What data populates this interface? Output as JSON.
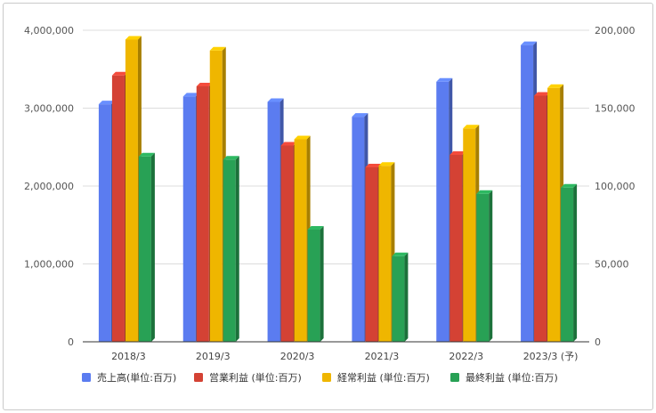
{
  "chart_data": {
    "type": "bar",
    "categories": [
      "2018/3",
      "2019/3",
      "2020/3",
      "2021/3",
      "2022/3",
      "2023/3 (予)"
    ],
    "series": [
      {
        "name": "売上高(単位:百万)",
        "axis": "left",
        "color": "#5b7cf0",
        "values": [
          3050000,
          3150000,
          3080000,
          2890000,
          3340000,
          3810000
        ]
      },
      {
        "name": "営業利益 (単位:百万)",
        "axis": "right",
        "color": "#d44234",
        "values": [
          171000,
          164000,
          126000,
          112000,
          120000,
          158000
        ]
      },
      {
        "name": "経常利益 (単位:百万)",
        "axis": "right",
        "color": "#efb600",
        "values": [
          194000,
          187000,
          130000,
          113000,
          137000,
          163000
        ]
      },
      {
        "name": "最終利益 (単位:百万)",
        "axis": "right",
        "color": "#28a155",
        "values": [
          119000,
          117000,
          72000,
          55000,
          95000,
          99000
        ]
      }
    ],
    "y_left": {
      "min": 0,
      "max": 4000000,
      "ticks": [
        0,
        1000000,
        2000000,
        3000000,
        4000000
      ],
      "tick_labels": [
        "0",
        "1,000,000",
        "2,000,000",
        "3,000,000",
        "4,000,000"
      ]
    },
    "y_right": {
      "min": 0,
      "max": 200000,
      "ticks": [
        0,
        50000,
        100000,
        150000,
        200000
      ],
      "tick_labels": [
        "0",
        "50,000",
        "100,000",
        "150,000",
        "200,000"
      ]
    },
    "grid": true,
    "legend_position": "bottom",
    "bar_style": "3d"
  }
}
